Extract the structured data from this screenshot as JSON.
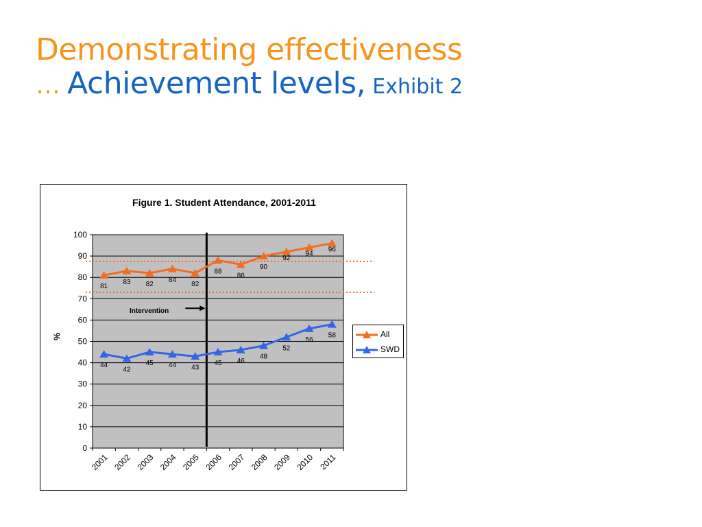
{
  "slide": {
    "title_line1": "Demonstrating effectiveness",
    "ellipsis": "…",
    "title_main": "Achievement levels,",
    "title_exhibit": "Exhibit 2"
  },
  "chart_data": {
    "type": "line",
    "title": "Figure 1. Student Attendance, 2001-2011",
    "xlabel": "",
    "ylabel": "%",
    "categories": [
      "2001",
      "2002",
      "2003",
      "2004",
      "2005",
      "2006",
      "2007",
      "2008",
      "2009",
      "2010",
      "2011"
    ],
    "ylim": [
      0,
      100
    ],
    "yticks": [
      0,
      10,
      20,
      30,
      40,
      50,
      60,
      70,
      80,
      90,
      100
    ],
    "grid": true,
    "legend": "right",
    "series": [
      {
        "name": "All",
        "color": "#f26d21",
        "marker": "triangle",
        "values": [
          81,
          83,
          82,
          84,
          82,
          88,
          86,
          90,
          92,
          94,
          96
        ]
      },
      {
        "name": "SWD",
        "color": "#3366e6",
        "marker": "triangle",
        "values": [
          44,
          42,
          45,
          44,
          43,
          45,
          46,
          48,
          52,
          56,
          58
        ]
      }
    ],
    "reference_lines": [
      {
        "y": 87.5,
        "color": "#f26d21",
        "style": "dotted"
      },
      {
        "y": 73,
        "color": "#f26d21",
        "style": "dotted"
      }
    ],
    "intervention": {
      "label": "Intervention",
      "between": [
        "2005",
        "2006"
      ]
    },
    "colors": {
      "plot_background": "#c0c0c0",
      "gridline": "#000000"
    }
  }
}
